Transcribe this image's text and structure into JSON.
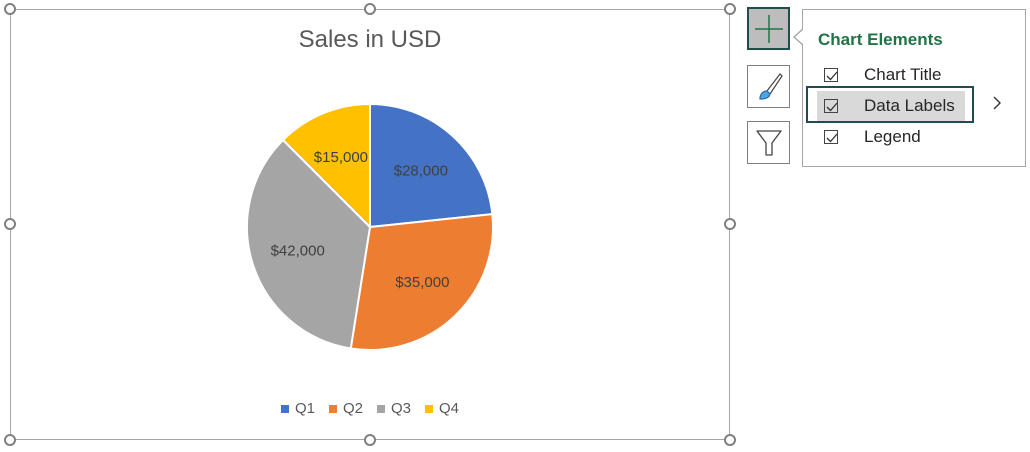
{
  "chart_data": {
    "type": "pie",
    "title": "Sales in USD",
    "categories": [
      "Q1",
      "Q2",
      "Q3",
      "Q4"
    ],
    "values": [
      28000,
      35000,
      42000,
      15000
    ],
    "data_labels": [
      "$28,000",
      "$35,000",
      "$42,000",
      "$15,000"
    ],
    "colors": [
      "#4472c4",
      "#ed7d31",
      "#a5a5a5",
      "#ffc000"
    ],
    "legend_position": "bottom",
    "start_angle_deg": 0,
    "direction": "clockwise"
  },
  "side_buttons": {
    "chart_elements": {
      "icon": "plus-icon",
      "active": true
    },
    "chart_styles": {
      "icon": "paintbrush-icon"
    },
    "chart_filters": {
      "icon": "filter-icon"
    }
  },
  "flyout": {
    "title": "Chart Elements",
    "items": [
      {
        "label": "Chart Title",
        "checked": true
      },
      {
        "label": "Data Labels",
        "checked": true
      },
      {
        "label": "Legend",
        "checked": true
      }
    ],
    "submenu_icon": "chevron-right-icon"
  }
}
